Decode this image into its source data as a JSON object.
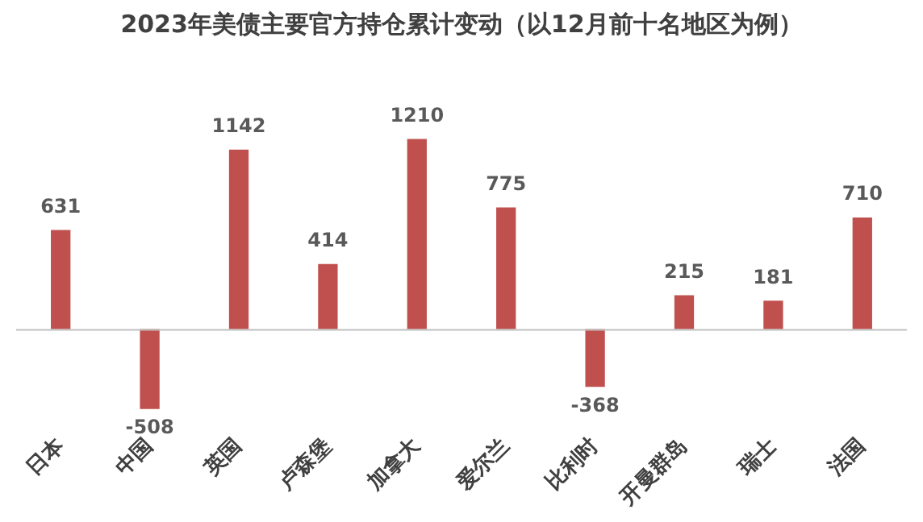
{
  "chart_data": {
    "type": "bar",
    "title": "2023年美债主要官方持仓累计变动（以12月前十名地区为例）",
    "categories": [
      "日本",
      "中国",
      "英国",
      "卢森堡",
      "加拿大",
      "爱尔兰",
      "比利时",
      "开曼群岛",
      "瑞士",
      "法国"
    ],
    "values": [
      631,
      -508,
      1142,
      414,
      1210,
      775,
      -368,
      215,
      181,
      710
    ],
    "color": "#c0504d",
    "data_labels": true,
    "legend": false,
    "grid": false
  }
}
